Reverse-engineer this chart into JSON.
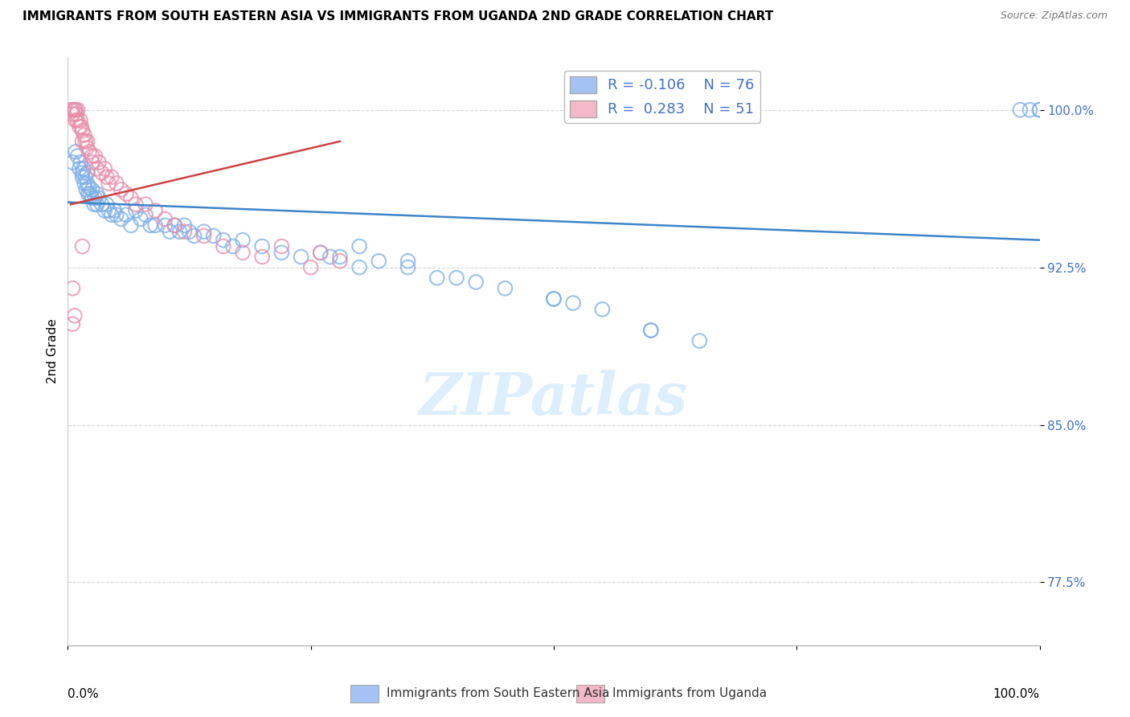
{
  "title": "IMMIGRANTS FROM SOUTH EASTERN ASIA VS IMMIGRANTS FROM UGANDA 2ND GRADE CORRELATION CHART",
  "source": "Source: ZipAtlas.com",
  "ylabel": "2nd Grade",
  "y_ticks": [
    77.5,
    85.0,
    92.5,
    100.0
  ],
  "y_tick_labels": [
    "77.5%",
    "85.0%",
    "92.5%",
    "100.0%"
  ],
  "x_range": [
    0.0,
    1.0
  ],
  "y_range": [
    74.5,
    102.5
  ],
  "legend_blue_r": "-0.106",
  "legend_blue_n": "76",
  "legend_pink_r": "0.283",
  "legend_pink_n": "51",
  "blue_color": "#a4c2f4",
  "pink_color": "#f4b8c8",
  "blue_scatter_edge": "#7baee8",
  "pink_scatter_edge": "#e88ca8",
  "blue_line_color": "#3d85c8",
  "pink_line_color": "#cc4444",
  "tick_color": "#4472c4",
  "watermark_color": "#ddeeff",
  "blue_scatter_x": [
    0.005,
    0.008,
    0.01,
    0.012,
    0.013,
    0.015,
    0.015,
    0.016,
    0.017,
    0.018,
    0.019,
    0.02,
    0.02,
    0.021,
    0.022,
    0.023,
    0.025,
    0.025,
    0.027,
    0.028,
    0.03,
    0.03,
    0.032,
    0.035,
    0.038,
    0.04,
    0.042,
    0.045,
    0.048,
    0.05,
    0.055,
    0.06,
    0.065,
    0.07,
    0.075,
    0.08,
    0.085,
    0.09,
    0.1,
    0.105,
    0.11,
    0.115,
    0.12,
    0.125,
    0.13,
    0.14,
    0.15,
    0.16,
    0.17,
    0.18,
    0.2,
    0.22,
    0.24,
    0.26,
    0.28,
    0.3,
    0.32,
    0.35,
    0.38,
    0.4,
    0.45,
    0.5,
    0.55,
    0.6,
    0.65,
    0.98,
    0.99,
    1.0,
    1.0,
    0.27,
    0.3,
    0.35,
    0.42,
    0.5,
    0.52,
    0.6
  ],
  "blue_scatter_y": [
    97.5,
    98.0,
    97.8,
    97.2,
    97.5,
    97.0,
    96.8,
    97.2,
    96.5,
    96.8,
    96.2,
    97.0,
    96.5,
    96.0,
    96.3,
    96.0,
    95.8,
    96.2,
    95.5,
    95.8,
    95.5,
    96.0,
    95.8,
    95.5,
    95.2,
    95.5,
    95.2,
    95.0,
    95.2,
    95.0,
    94.8,
    95.0,
    94.5,
    95.2,
    94.8,
    95.0,
    94.5,
    94.5,
    94.5,
    94.2,
    94.5,
    94.2,
    94.5,
    94.2,
    94.0,
    94.2,
    94.0,
    93.8,
    93.5,
    93.8,
    93.5,
    93.2,
    93.0,
    93.2,
    93.0,
    93.5,
    92.8,
    92.5,
    92.0,
    92.0,
    91.5,
    91.0,
    90.5,
    89.5,
    89.0,
    100.0,
    100.0,
    100.0,
    100.0,
    93.0,
    92.5,
    92.8,
    91.8,
    91.0,
    90.8,
    89.5
  ],
  "pink_scatter_x": [
    0.003,
    0.005,
    0.005,
    0.007,
    0.008,
    0.008,
    0.009,
    0.01,
    0.01,
    0.012,
    0.013,
    0.014,
    0.015,
    0.015,
    0.017,
    0.018,
    0.02,
    0.02,
    0.022,
    0.025,
    0.025,
    0.028,
    0.03,
    0.032,
    0.035,
    0.038,
    0.04,
    0.042,
    0.045,
    0.05,
    0.055,
    0.06,
    0.065,
    0.07,
    0.08,
    0.09,
    0.1,
    0.11,
    0.12,
    0.14,
    0.16,
    0.18,
    0.2,
    0.22,
    0.25,
    0.26,
    0.28,
    0.015,
    0.005,
    0.007,
    0.005
  ],
  "pink_scatter_y": [
    100.0,
    100.0,
    99.8,
    100.0,
    100.0,
    99.5,
    99.8,
    99.5,
    100.0,
    99.2,
    99.5,
    99.2,
    99.0,
    98.5,
    98.8,
    98.5,
    98.2,
    98.5,
    98.0,
    97.8,
    97.5,
    97.8,
    97.2,
    97.5,
    97.0,
    97.2,
    96.8,
    96.5,
    96.8,
    96.5,
    96.2,
    96.0,
    95.8,
    95.5,
    95.5,
    95.2,
    94.8,
    94.5,
    94.2,
    94.0,
    93.5,
    93.2,
    93.0,
    93.5,
    92.5,
    93.2,
    92.8,
    93.5,
    91.5,
    90.2,
    89.8
  ],
  "blue_trendline_x": [
    0.0,
    1.0
  ],
  "blue_trendline_y": [
    95.6,
    93.8
  ],
  "pink_trendline_x": [
    0.003,
    0.28
  ],
  "pink_trendline_y": [
    95.5,
    98.5
  ],
  "bottom_legend_blue_label": "Immigrants from South Eastern Asia",
  "bottom_legend_pink_label": "Immigrants from Uganda"
}
